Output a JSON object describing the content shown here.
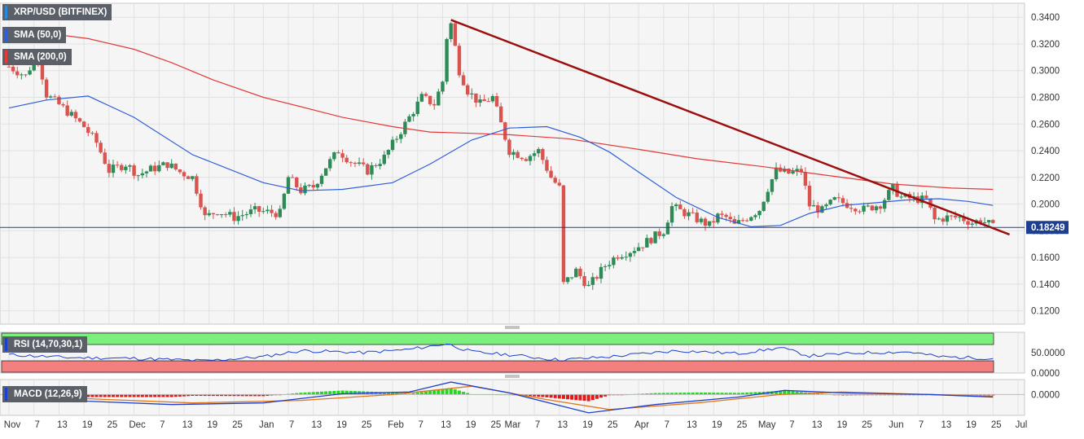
{
  "instrument_label": "XRP/USD (BITFINEX)",
  "indicators": {
    "sma50": {
      "label": "SMA (50,0)",
      "color": "#2f5fd8"
    },
    "sma200": {
      "label": "SMA (200,0)",
      "color": "#e23a3a"
    },
    "rsi": {
      "label": "RSI (14,70,30,1)",
      "color": "#1c3fd1"
    },
    "macd": {
      "label": "MACD (12,26,9)"
    }
  },
  "colors": {
    "up": "#2e8b57",
    "down": "#d9534f",
    "trendline": "#9b0f0f",
    "price_line": "#1f3f8f",
    "overbought_zone": "#7cf07c",
    "oversold_zone": "#f47f7f",
    "macd_signal": "#e0781a",
    "macd_line": "#1c3fd1",
    "hist_up": "#1fd81f",
    "hist_down": "#e31818"
  },
  "chart_data": [
    {
      "type": "candlestick",
      "title": "XRP/USD (BITFINEX)",
      "ylim": [
        0.11,
        0.345
      ],
      "y_ticks": [
        "0.3400",
        "0.3200",
        "0.3000",
        "0.2800",
        "0.2600",
        "0.2400",
        "0.2200",
        "0.2000",
        "0.1800",
        "0.1600",
        "0.1400",
        "0.1200"
      ],
      "x_tick_labels": [
        "Nov",
        "7",
        "13",
        "19",
        "25",
        "Dec",
        "7",
        "13",
        "19",
        "25",
        "Jan",
        "7",
        "13",
        "19",
        "25",
        "Feb",
        "7",
        "13",
        "19",
        "25",
        "Mar",
        "7",
        "13",
        "19",
        "25",
        "Apr",
        "7",
        "13",
        "19",
        "25",
        "May",
        "7",
        "13",
        "19",
        "25",
        "Jun",
        "7",
        "13",
        "19",
        "25",
        "Jul"
      ],
      "x_range": [
        "2018-11-01",
        "2019-07-01"
      ],
      "current_price": {
        "value": 0.18249,
        "label": "0.18249"
      },
      "close_anchors": [
        [
          "2018-11-01",
          0.303
        ],
        [
          "2018-11-05",
          0.296
        ],
        [
          "2018-11-07",
          0.308
        ],
        [
          "2018-11-08",
          0.31
        ],
        [
          "2018-11-10",
          0.282
        ],
        [
          "2018-11-14",
          0.272
        ],
        [
          "2018-11-19",
          0.258
        ],
        [
          "2018-11-22",
          0.246
        ],
        [
          "2018-11-25",
          0.225
        ],
        [
          "2018-11-29",
          0.23
        ],
        [
          "2018-12-02",
          0.222
        ],
        [
          "2018-12-05",
          0.226
        ],
        [
          "2018-12-09",
          0.23
        ],
        [
          "2018-12-12",
          0.224
        ],
        [
          "2018-12-15",
          0.22
        ],
        [
          "2018-12-17",
          0.201
        ],
        [
          "2018-12-18",
          0.19
        ],
        [
          "2018-12-21",
          0.195
        ],
        [
          "2018-12-25",
          0.19
        ],
        [
          "2018-12-30",
          0.195
        ],
        [
          "2019-01-05",
          0.193
        ],
        [
          "2019-01-07",
          0.22
        ],
        [
          "2019-01-10",
          0.21
        ],
        [
          "2019-01-13",
          0.213
        ],
        [
          "2019-01-16",
          0.228
        ],
        [
          "2019-01-19",
          0.24
        ],
        [
          "2019-01-22",
          0.232
        ],
        [
          "2019-01-26",
          0.225
        ],
        [
          "2019-01-30",
          0.235
        ],
        [
          "2019-02-03",
          0.255
        ],
        [
          "2019-02-08",
          0.28
        ],
        [
          "2019-02-11",
          0.275
        ],
        [
          "2019-02-13",
          0.292
        ],
        [
          "2019-02-14",
          0.325
        ],
        [
          "2019-02-15",
          0.335
        ],
        [
          "2019-02-17",
          0.3
        ],
        [
          "2019-02-19",
          0.285
        ],
        [
          "2019-02-22",
          0.275
        ],
        [
          "2019-02-25",
          0.28
        ],
        [
          "2019-02-27",
          0.26
        ],
        [
          "2019-03-01",
          0.24
        ],
        [
          "2019-03-05",
          0.235
        ],
        [
          "2019-03-08",
          0.24
        ],
        [
          "2019-03-11",
          0.22
        ],
        [
          "2019-03-13",
          0.212
        ],
        [
          "2019-03-14",
          0.14
        ],
        [
          "2019-03-17",
          0.15
        ],
        [
          "2019-03-20",
          0.138
        ],
        [
          "2019-03-24",
          0.154
        ],
        [
          "2019-03-27",
          0.162
        ],
        [
          "2019-03-30",
          0.165
        ],
        [
          "2019-04-02",
          0.17
        ],
        [
          "2019-04-07",
          0.18
        ],
        [
          "2019-04-09",
          0.198
        ],
        [
          "2019-04-13",
          0.192
        ],
        [
          "2019-04-16",
          0.187
        ],
        [
          "2019-04-18",
          0.184
        ],
        [
          "2019-04-20",
          0.191
        ],
        [
          "2019-04-22",
          0.19
        ],
        [
          "2019-04-24",
          0.184
        ],
        [
          "2019-04-27",
          0.19
        ],
        [
          "2019-04-30",
          0.196
        ],
        [
          "2019-05-02",
          0.212
        ],
        [
          "2019-05-04",
          0.225
        ],
        [
          "2019-05-07",
          0.223
        ],
        [
          "2019-05-10",
          0.225
        ],
        [
          "2019-05-12",
          0.199
        ],
        [
          "2019-05-15",
          0.195
        ],
        [
          "2019-05-18",
          0.203
        ],
        [
          "2019-05-21",
          0.2
        ],
        [
          "2019-05-25",
          0.196
        ],
        [
          "2019-05-29",
          0.2
        ],
        [
          "2019-06-01",
          0.212
        ],
        [
          "2019-06-03",
          0.205
        ],
        [
          "2019-06-06",
          0.204
        ],
        [
          "2019-06-09",
          0.203
        ],
        [
          "2019-06-11",
          0.188
        ],
        [
          "2019-06-14",
          0.19
        ],
        [
          "2019-06-17",
          0.19
        ],
        [
          "2019-06-20",
          0.186
        ],
        [
          "2019-06-22",
          0.188
        ],
        [
          "2019-06-24",
          0.185
        ],
        [
          "2019-06-25",
          0.18249
        ]
      ],
      "series": [
        {
          "name": "SMA (50,0)",
          "points": [
            [
              "2018-11-01",
              0.272
            ],
            [
              "2018-11-10",
              0.278
            ],
            [
              "2018-11-20",
              0.281
            ],
            [
              "2018-12-01",
              0.265
            ],
            [
              "2018-12-15",
              0.237
            ],
            [
              "2019-01-01",
              0.216
            ],
            [
              "2019-01-10",
              0.21
            ],
            [
              "2019-01-20",
              0.211
            ],
            [
              "2019-02-01",
              0.216
            ],
            [
              "2019-02-10",
              0.23
            ],
            [
              "2019-02-20",
              0.248
            ],
            [
              "2019-03-01",
              0.257
            ],
            [
              "2019-03-10",
              0.258
            ],
            [
              "2019-03-18",
              0.25
            ],
            [
              "2019-03-25",
              0.239
            ],
            [
              "2019-04-01",
              0.224
            ],
            [
              "2019-04-10",
              0.205
            ],
            [
              "2019-04-20",
              0.19
            ],
            [
              "2019-04-28",
              0.183
            ],
            [
              "2019-05-05",
              0.184
            ],
            [
              "2019-05-12",
              0.193
            ],
            [
              "2019-05-20",
              0.199
            ],
            [
              "2019-05-28",
              0.201
            ],
            [
              "2019-06-04",
              0.203
            ],
            [
              "2019-06-12",
              0.204
            ],
            [
              "2019-06-19",
              0.202
            ],
            [
              "2019-06-25",
              0.199
            ]
          ]
        },
        {
          "name": "SMA (200,0)",
          "points": [
            [
              "2018-11-01",
              0.33
            ],
            [
              "2018-11-10",
              0.328
            ],
            [
              "2018-11-20",
              0.324
            ],
            [
              "2018-12-01",
              0.316
            ],
            [
              "2018-12-10",
              0.306
            ],
            [
              "2018-12-20",
              0.293
            ],
            [
              "2019-01-01",
              0.28
            ],
            [
              "2019-01-10",
              0.273
            ],
            [
              "2019-01-20",
              0.265
            ],
            [
              "2019-02-01",
              0.258
            ],
            [
              "2019-02-10",
              0.254
            ],
            [
              "2019-02-20",
              0.253
            ],
            [
              "2019-03-01",
              0.252
            ],
            [
              "2019-03-15",
              0.249
            ],
            [
              "2019-04-01",
              0.241
            ],
            [
              "2019-04-15",
              0.234
            ],
            [
              "2019-05-01",
              0.228
            ],
            [
              "2019-05-15",
              0.222
            ],
            [
              "2019-06-01",
              0.215
            ],
            [
              "2019-06-15",
              0.212
            ],
            [
              "2019-06-25",
              0.211
            ]
          ]
        }
      ],
      "trendline": {
        "from": [
          "2019-02-15",
          0.338
        ],
        "to": [
          "2019-06-27",
          0.179
        ]
      }
    },
    {
      "type": "line",
      "title": "RSI (14,70,30,1)",
      "ylim": [
        0,
        100
      ],
      "y_ticks": [
        "50.0000",
        "0.0000"
      ],
      "overbought": 70,
      "oversold": 30,
      "points": [
        [
          "2018-11-01",
          45
        ],
        [
          "2018-11-15",
          38
        ],
        [
          "2018-12-01",
          36
        ],
        [
          "2018-12-18",
          30
        ],
        [
          "2019-01-01",
          40
        ],
        [
          "2019-01-10",
          55
        ],
        [
          "2019-01-25",
          50
        ],
        [
          "2019-02-05",
          58
        ],
        [
          "2019-02-14",
          72
        ],
        [
          "2019-02-20",
          52
        ],
        [
          "2019-03-01",
          45
        ],
        [
          "2019-03-13",
          32
        ],
        [
          "2019-03-25",
          40
        ],
        [
          "2019-04-10",
          55
        ],
        [
          "2019-04-25",
          48
        ],
        [
          "2019-05-05",
          62
        ],
        [
          "2019-05-12",
          42
        ],
        [
          "2019-05-25",
          50
        ],
        [
          "2019-06-05",
          52
        ],
        [
          "2019-06-12",
          40
        ],
        [
          "2019-06-25",
          36
        ]
      ]
    },
    {
      "type": "bar",
      "title": "MACD (12,26,9)",
      "ylim": [
        -0.025,
        0.018
      ],
      "y_ticks": [
        "0.0000"
      ],
      "series": [
        {
          "name": "MACD line",
          "points": [
            [
              "2018-11-01",
              -0.002
            ],
            [
              "2018-11-20",
              -0.008
            ],
            [
              "2018-12-10",
              -0.012
            ],
            [
              "2019-01-01",
              -0.01
            ],
            [
              "2019-01-20",
              0.001
            ],
            [
              "2019-02-05",
              0.003
            ],
            [
              "2019-02-15",
              0.015
            ],
            [
              "2019-03-01",
              0.002
            ],
            [
              "2019-03-20",
              -0.022
            ],
            [
              "2019-04-05",
              -0.012
            ],
            [
              "2019-04-25",
              -0.003
            ],
            [
              "2019-05-06",
              0.005
            ],
            [
              "2019-05-20",
              0.002
            ],
            [
              "2019-06-10",
              0.0
            ],
            [
              "2019-06-25",
              -0.003
            ]
          ]
        },
        {
          "name": "Signal line",
          "points": [
            [
              "2018-11-01",
              -0.001
            ],
            [
              "2018-11-25",
              -0.006
            ],
            [
              "2018-12-15",
              -0.01
            ],
            [
              "2019-01-10",
              -0.007
            ],
            [
              "2019-02-01",
              0.0
            ],
            [
              "2019-02-20",
              0.01
            ],
            [
              "2019-03-10",
              -0.006
            ],
            [
              "2019-03-25",
              -0.018
            ],
            [
              "2019-04-15",
              -0.01
            ],
            [
              "2019-05-05",
              0.0
            ],
            [
              "2019-05-20",
              0.003
            ],
            [
              "2019-06-10",
              0.0
            ],
            [
              "2019-06-25",
              -0.002
            ]
          ]
        }
      ]
    }
  ]
}
